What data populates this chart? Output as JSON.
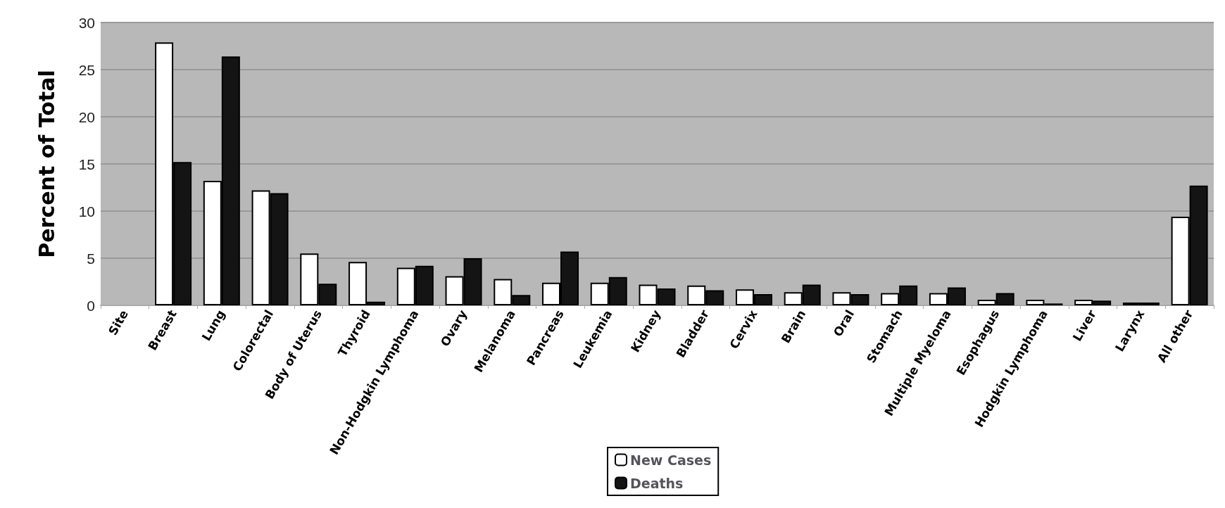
{
  "chart_data": {
    "type": "bar",
    "ylabel": "Percent of Total",
    "categories": [
      "Site",
      "Breast",
      "Lung",
      "Colorectal",
      "Body of Uterus",
      "Thyroid",
      "Non-Hodgkin Lymphoma",
      "Ovary",
      "Melanoma",
      "Pancreas",
      "Leukemia",
      "Kidney",
      "Bladder",
      "Cervix",
      "Brain",
      "Oral",
      "Stomach",
      "Multiple Myeloma",
      "Esophagus",
      "Hodgkin Lymphoma",
      "Liver",
      "Larynx",
      "All other"
    ],
    "series": [
      {
        "name": "New Cases",
        "color": "#ffffff",
        "values": [
          null,
          27.9,
          13.2,
          12.2,
          5.5,
          4.6,
          4.0,
          3.1,
          2.8,
          2.4,
          2.4,
          2.2,
          2.1,
          1.7,
          1.4,
          1.4,
          1.3,
          1.3,
          0.6,
          0.6,
          0.6,
          0.3,
          9.4
        ]
      },
      {
        "name": "Deaths",
        "color": "#141414",
        "values": [
          null,
          15.2,
          26.4,
          11.9,
          2.3,
          0.4,
          4.2,
          5.0,
          1.1,
          5.7,
          3.0,
          1.8,
          1.6,
          1.2,
          2.2,
          1.2,
          2.1,
          1.9,
          1.3,
          0.2,
          0.5,
          0.3,
          12.7
        ]
      }
    ],
    "ylim": [
      0,
      30
    ],
    "yticks": [
      0,
      5,
      10,
      15,
      20,
      25,
      30
    ],
    "grid": "y",
    "legend": "bottom"
  }
}
